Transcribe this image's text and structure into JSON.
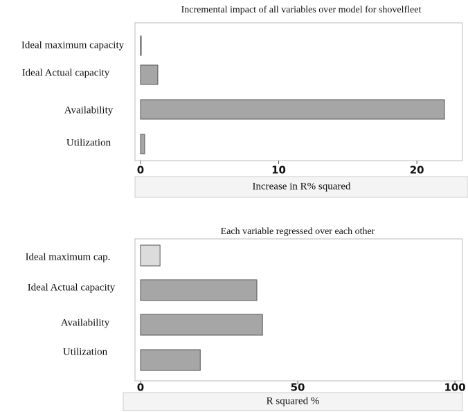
{
  "chart_data": [
    {
      "type": "bar",
      "title": "Incremental impact of all variables over model for shovelfleet",
      "categories": [
        "Ideal maximum capacity",
        "Ideal Actual capacity",
        "Availability",
        "Utilization"
      ],
      "values": [
        0.05,
        1.25,
        22.0,
        0.3
      ],
      "colors": [
        "#a6a6a6",
        "#a6a6a6",
        "#a6a6a6",
        "#a6a6a6"
      ],
      "xlim": [
        -0.4,
        23.3
      ],
      "xticks": [
        0,
        10,
        20
      ],
      "xlabel": "Increase in R% squared"
    },
    {
      "type": "bar",
      "title": "Each variable regressed over each other",
      "categories": [
        "Ideal maximum cap.",
        "Ideal Actual capacity",
        "Availability",
        "Utilization"
      ],
      "values": [
        6.2,
        37,
        38.8,
        19
      ],
      "colors": [
        "#dcdcdc",
        "#a6a6a6",
        "#a6a6a6",
        "#a6a6a6"
      ],
      "xlim": [
        -1.76,
        102.4
      ],
      "xticks": [
        0,
        50,
        100
      ],
      "xlabel": "R squared %"
    }
  ]
}
